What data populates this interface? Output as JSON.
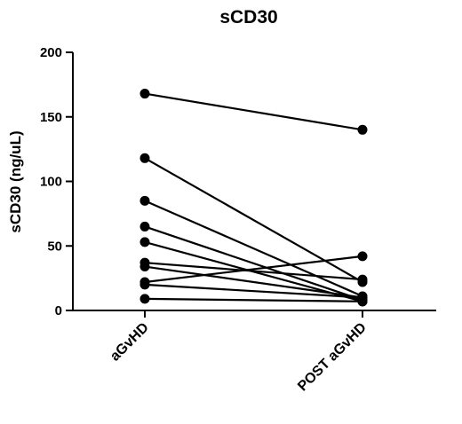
{
  "chart_data": {
    "type": "line",
    "title": "sCD30",
    "xlabel": "",
    "ylabel": "sCD30 (ng/uL)",
    "categories": [
      "aGvHD",
      "POST aGvHD"
    ],
    "ylim": [
      0,
      200
    ],
    "yticks": [
      "0",
      "50",
      "100",
      "150",
      "200"
    ],
    "grid": false,
    "legend": "none",
    "series": [
      {
        "values": [
          168,
          140
        ]
      },
      {
        "values": [
          118,
          22
        ]
      },
      {
        "values": [
          85,
          11
        ]
      },
      {
        "values": [
          65,
          8
        ]
      },
      {
        "values": [
          53,
          7
        ]
      },
      {
        "values": [
          37,
          24
        ]
      },
      {
        "values": [
          34,
          10
        ]
      },
      {
        "values": [
          22,
          42
        ]
      },
      {
        "values": [
          20,
          10
        ]
      },
      {
        "values": [
          9,
          7
        ]
      }
    ]
  }
}
